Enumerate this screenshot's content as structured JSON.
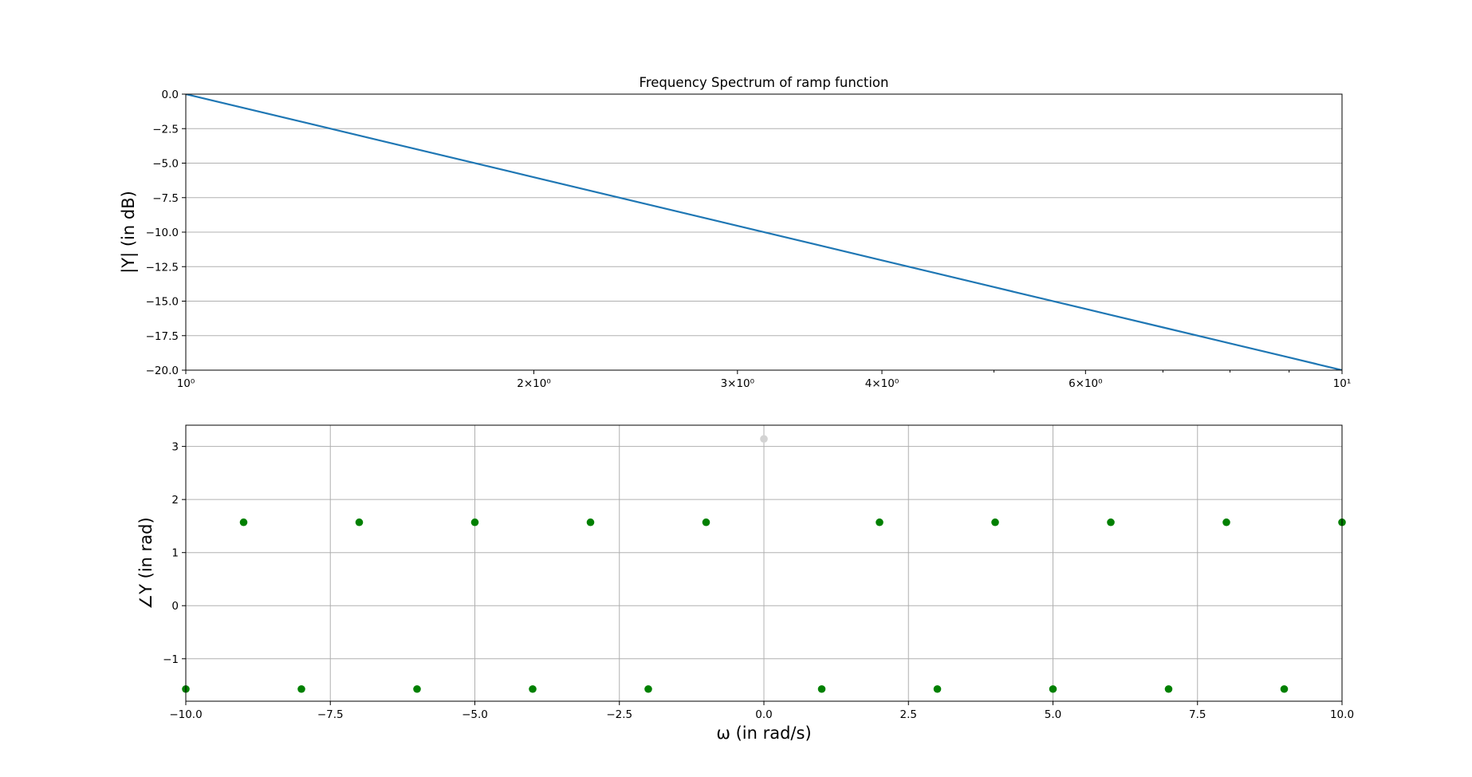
{
  "figure": {
    "background": "#ffffff"
  },
  "chart_data": [
    {
      "type": "line",
      "title": "Frequency Spectrum of ramp function",
      "xlabel": "",
      "ylabel": "|Y| (in dB)",
      "xscale": "log",
      "xlim": [
        1,
        10
      ],
      "ylim": [
        -20,
        0
      ],
      "grid": {
        "x": false,
        "y": true
      },
      "xticks": [
        {
          "value": 1,
          "label": "10⁰"
        },
        {
          "value": 2,
          "label": "2×10⁰"
        },
        {
          "value": 3,
          "label": "3×10⁰"
        },
        {
          "value": 4,
          "label": "4×10⁰"
        },
        {
          "value": 6,
          "label": "6×10⁰"
        },
        {
          "value": 10,
          "label": "10¹"
        }
      ],
      "yticks": [
        {
          "value": 0,
          "label": "0.0"
        },
        {
          "value": -2.5,
          "label": "−2.5"
        },
        {
          "value": -5,
          "label": "−5.0"
        },
        {
          "value": -7.5,
          "label": "−7.5"
        },
        {
          "value": -10,
          "label": "−10.0"
        },
        {
          "value": -12.5,
          "label": "−12.5"
        },
        {
          "value": -15,
          "label": "−15.0"
        },
        {
          "value": -17.5,
          "label": "−17.5"
        },
        {
          "value": -20,
          "label": "−20.0"
        }
      ],
      "series": [
        {
          "color": "#1f77b4",
          "x": [
            1,
            1.5,
            2,
            2.5,
            3,
            4,
            5,
            6,
            7,
            8,
            9,
            10
          ],
          "y": [
            0,
            -3.52,
            -6.02,
            -7.96,
            -9.54,
            -12.04,
            -13.98,
            -15.56,
            -16.9,
            -18.06,
            -19.08,
            -20
          ]
        }
      ]
    },
    {
      "type": "scatter",
      "title": "",
      "xlabel": "ω (in rad/s)",
      "ylabel": "∠Y (in rad)",
      "xlim": [
        -10,
        10
      ],
      "ylim": [
        -1.8,
        3.4
      ],
      "grid": {
        "x": true,
        "y": true
      },
      "xticks": [
        {
          "value": -10,
          "label": "−10.0"
        },
        {
          "value": -7.5,
          "label": "−7.5"
        },
        {
          "value": -5,
          "label": "−5.0"
        },
        {
          "value": -2.5,
          "label": "−2.5"
        },
        {
          "value": 0,
          "label": "0.0"
        },
        {
          "value": 2.5,
          "label": "2.5"
        },
        {
          "value": 5,
          "label": "5.0"
        },
        {
          "value": 7.5,
          "label": "7.5"
        },
        {
          "value": 10,
          "label": "10.0"
        }
      ],
      "yticks": [
        {
          "value": -1,
          "label": "−1"
        },
        {
          "value": 0,
          "label": "0"
        },
        {
          "value": 1,
          "label": "1"
        },
        {
          "value": 2,
          "label": "2"
        },
        {
          "value": 3,
          "label": "3"
        }
      ],
      "series": [
        {
          "color": "#008000",
          "x": [
            -10,
            -9,
            -8,
            -7,
            -6,
            -5,
            -4,
            -3,
            -2,
            -1,
            1,
            2,
            3,
            4,
            5,
            6,
            7,
            8,
            9,
            10
          ],
          "y": [
            -1.5708,
            1.5708,
            -1.5708,
            1.5708,
            -1.5708,
            1.5708,
            -1.5708,
            1.5708,
            -1.5708,
            1.5708,
            -1.5708,
            1.5708,
            -1.5708,
            1.5708,
            -1.5708,
            1.5708,
            -1.5708,
            1.5708,
            -1.5708,
            1.5708
          ]
        },
        {
          "color": "#d3d3d3",
          "x": [
            0
          ],
          "y": [
            3.1416
          ]
        }
      ]
    }
  ]
}
